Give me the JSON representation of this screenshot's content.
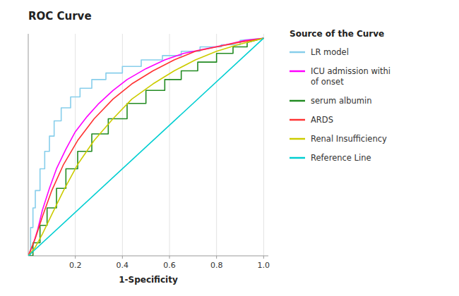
{
  "chart_data": {
    "type": "line",
    "title": "ROC Curve",
    "x_label": "1-Specificity",
    "legend_title": "Source of the Curve",
    "legend": "right",
    "grid": true,
    "tick_labels": "x",
    "xlim": [
      0,
      1.02
    ],
    "ylim": [
      0,
      1.02
    ],
    "xticks": [
      0.2,
      0.4,
      0.6,
      0.8,
      {
        "value": 1.0,
        "label": "1.0"
      }
    ],
    "yticks": [],
    "series": [
      {
        "name": "LR model",
        "color": "#87CEEB",
        "x": [
          0,
          0.01,
          0.01,
          0.02,
          0.02,
          0.03,
          0.03,
          0.05,
          0.05,
          0.07,
          0.07,
          0.09,
          0.09,
          0.11,
          0.11,
          0.14,
          0.14,
          0.18,
          0.18,
          0.22,
          0.22,
          0.27,
          0.27,
          0.33,
          0.33,
          0.4,
          0.4,
          0.48,
          0.48,
          0.57,
          0.57,
          0.65,
          0.65,
          0.73,
          0.73,
          0.82,
          0.82,
          0.9,
          0.9,
          1.0
        ],
        "values": [
          0,
          0,
          0.13,
          0.13,
          0.22,
          0.22,
          0.3,
          0.3,
          0.4,
          0.4,
          0.48,
          0.48,
          0.55,
          0.55,
          0.62,
          0.62,
          0.68,
          0.68,
          0.73,
          0.73,
          0.77,
          0.77,
          0.81,
          0.81,
          0.84,
          0.84,
          0.87,
          0.87,
          0.9,
          0.9,
          0.92,
          0.92,
          0.94,
          0.94,
          0.96,
          0.96,
          0.97,
          0.97,
          0.99,
          1.0
        ]
      },
      {
        "name": "ICU admission withi\nof onset",
        "color": "#FF00FF",
        "x": [
          0,
          0.02,
          0.04,
          0.06,
          0.09,
          0.12,
          0.16,
          0.2,
          0.25,
          0.3,
          0.36,
          0.42,
          0.5,
          0.58,
          0.66,
          0.75,
          0.84,
          0.92,
          1.0
        ],
        "values": [
          0,
          0.05,
          0.12,
          0.21,
          0.31,
          0.4,
          0.49,
          0.57,
          0.64,
          0.7,
          0.76,
          0.81,
          0.86,
          0.9,
          0.93,
          0.95,
          0.97,
          0.99,
          1.0
        ]
      },
      {
        "name": "serum albumin",
        "color": "#228B22",
        "x": [
          0,
          0.02,
          0.02,
          0.05,
          0.05,
          0.08,
          0.08,
          0.12,
          0.12,
          0.16,
          0.16,
          0.21,
          0.21,
          0.27,
          0.27,
          0.34,
          0.34,
          0.42,
          0.42,
          0.5,
          0.5,
          0.58,
          0.58,
          0.65,
          0.65,
          0.72,
          0.72,
          0.8,
          0.8,
          0.87,
          0.87,
          0.93,
          0.93,
          1.0
        ],
        "values": [
          0,
          0,
          0.06,
          0.06,
          0.14,
          0.14,
          0.22,
          0.22,
          0.31,
          0.31,
          0.4,
          0.4,
          0.48,
          0.48,
          0.56,
          0.56,
          0.63,
          0.63,
          0.7,
          0.7,
          0.76,
          0.76,
          0.81,
          0.81,
          0.85,
          0.85,
          0.89,
          0.89,
          0.93,
          0.93,
          0.96,
          0.96,
          0.98,
          1.0
        ]
      },
      {
        "name": "ARDS",
        "color": "#FF3333",
        "x": [
          0,
          0.03,
          0.06,
          0.1,
          0.15,
          0.21,
          0.28,
          0.36,
          0.44,
          0.53,
          0.62,
          0.71,
          0.8,
          0.89,
          1.0
        ],
        "values": [
          0,
          0.08,
          0.18,
          0.3,
          0.42,
          0.53,
          0.63,
          0.72,
          0.79,
          0.85,
          0.9,
          0.94,
          0.96,
          0.98,
          1.0
        ]
      },
      {
        "name": "Renal Insufficiency",
        "color": "#CCCC00",
        "x": [
          0,
          0.03,
          0.06,
          0.1,
          0.15,
          0.21,
          0.28,
          0.36,
          0.44,
          0.53,
          0.62,
          0.71,
          0.8,
          0.89,
          1.0
        ],
        "values": [
          0,
          0.04,
          0.1,
          0.19,
          0.3,
          0.42,
          0.53,
          0.63,
          0.72,
          0.79,
          0.85,
          0.9,
          0.94,
          0.97,
          1.0
        ]
      },
      {
        "name": "Reference Line",
        "color": "#00CED1",
        "x": [
          0,
          1
        ],
        "values": [
          0,
          1
        ]
      }
    ]
  }
}
